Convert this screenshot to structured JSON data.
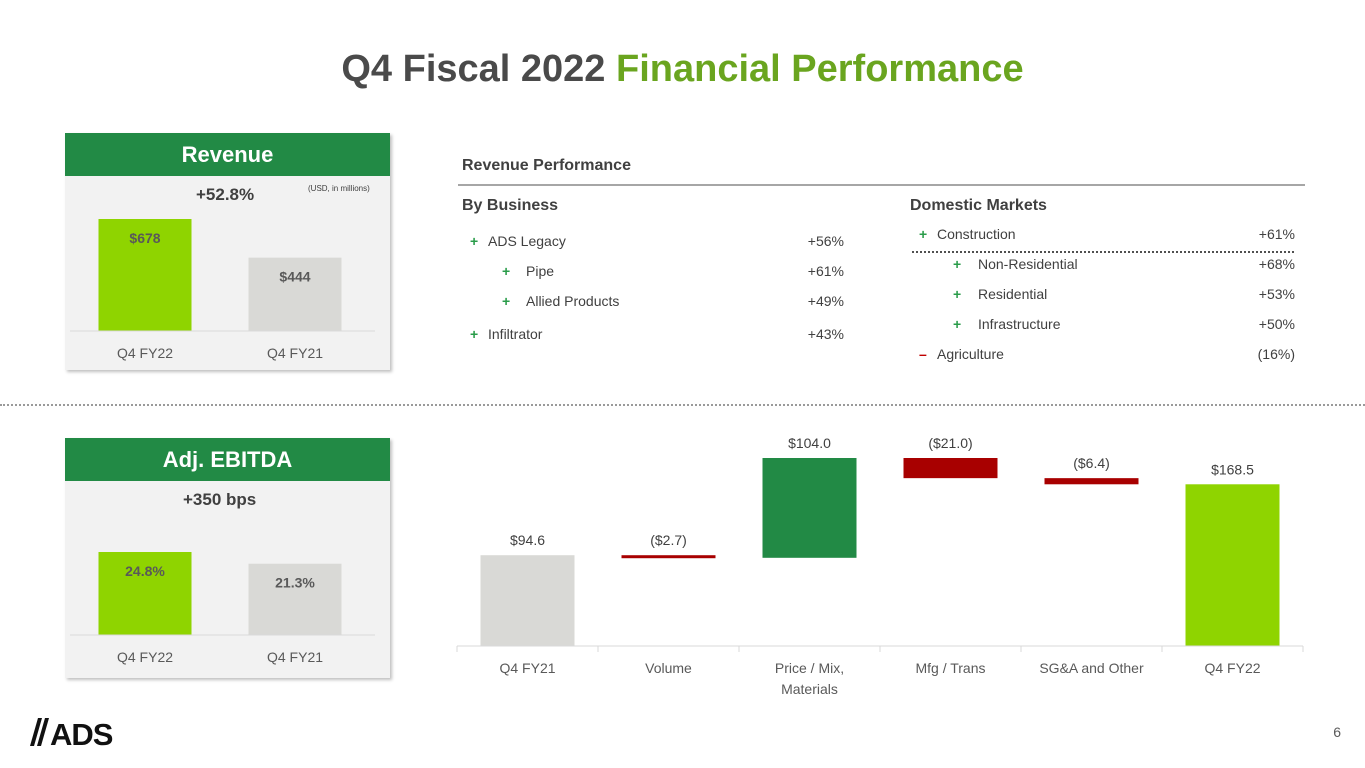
{
  "title": {
    "part1": "Q4 Fiscal 2022",
    "part2": "Financial Performance"
  },
  "revenue_card": {
    "header": "Revenue",
    "change": "+52.8%",
    "note": "(USD, in millions)"
  },
  "ebitda_card": {
    "header": "Adj. EBITDA",
    "change": "+350 bps"
  },
  "revenue_performance": {
    "title": "Revenue Performance",
    "by_business": {
      "heading": "By Business",
      "rows": [
        {
          "sign": "+",
          "label": "ADS Legacy",
          "value": "+56%"
        },
        {
          "sign": "+",
          "label": "Pipe",
          "value": "+61%"
        },
        {
          "sign": "+",
          "label": "Allied Products",
          "value": "+49%"
        },
        {
          "sign": "+",
          "label": "Infiltrator",
          "value": "+43%"
        }
      ]
    },
    "domestic_markets": {
      "heading": "Domestic Markets",
      "rows": [
        {
          "sign": "+",
          "label": "Construction",
          "value": "+61%"
        },
        {
          "sign": "+",
          "label": "Non-Residential",
          "value": "+68%"
        },
        {
          "sign": "+",
          "label": "Residential",
          "value": "+53%"
        },
        {
          "sign": "+",
          "label": "Infrastructure",
          "value": "+50%"
        },
        {
          "sign": "–",
          "label": "Agriculture",
          "value": "(16%)"
        }
      ]
    }
  },
  "chart_data": [
    {
      "type": "bar",
      "categories": [
        "Q4 FY22",
        "Q4 FY21"
      ],
      "values": [
        678,
        444
      ],
      "data_labels": [
        "$678",
        "$444"
      ],
      "colors": [
        "#8fd400",
        "#d9d9d6"
      ]
    },
    {
      "type": "bar",
      "categories": [
        "Q4 FY22",
        "Q4 FY21"
      ],
      "values": [
        24.8,
        21.3
      ],
      "data_labels": [
        "24.8%",
        "21.3%"
      ],
      "colors": [
        "#8fd400",
        "#d9d9d6"
      ]
    },
    {
      "type": "bar",
      "subtype": "waterfall",
      "categories": [
        "Q4 FY21",
        "Volume",
        "Price / Mix, Materials",
        "Mfg / Trans",
        "SG&A and Other",
        "Q4 FY22"
      ],
      "values": [
        94.6,
        -2.7,
        104.0,
        -21.0,
        -6.4,
        168.5
      ],
      "data_labels": [
        "$94.6",
        "($2.7)",
        "$104.0",
        "($21.0)",
        "($6.4)",
        "$168.5"
      ],
      "kinds": [
        "total",
        "delta",
        "delta",
        "delta",
        "delta",
        "total"
      ],
      "colors": {
        "start_total": "#d9d9d6",
        "increase": "#228a45",
        "decrease": "#a80000",
        "end_total": "#8fd400"
      }
    }
  ],
  "footer": {
    "logo_text": "ADS",
    "page_number": "6"
  }
}
